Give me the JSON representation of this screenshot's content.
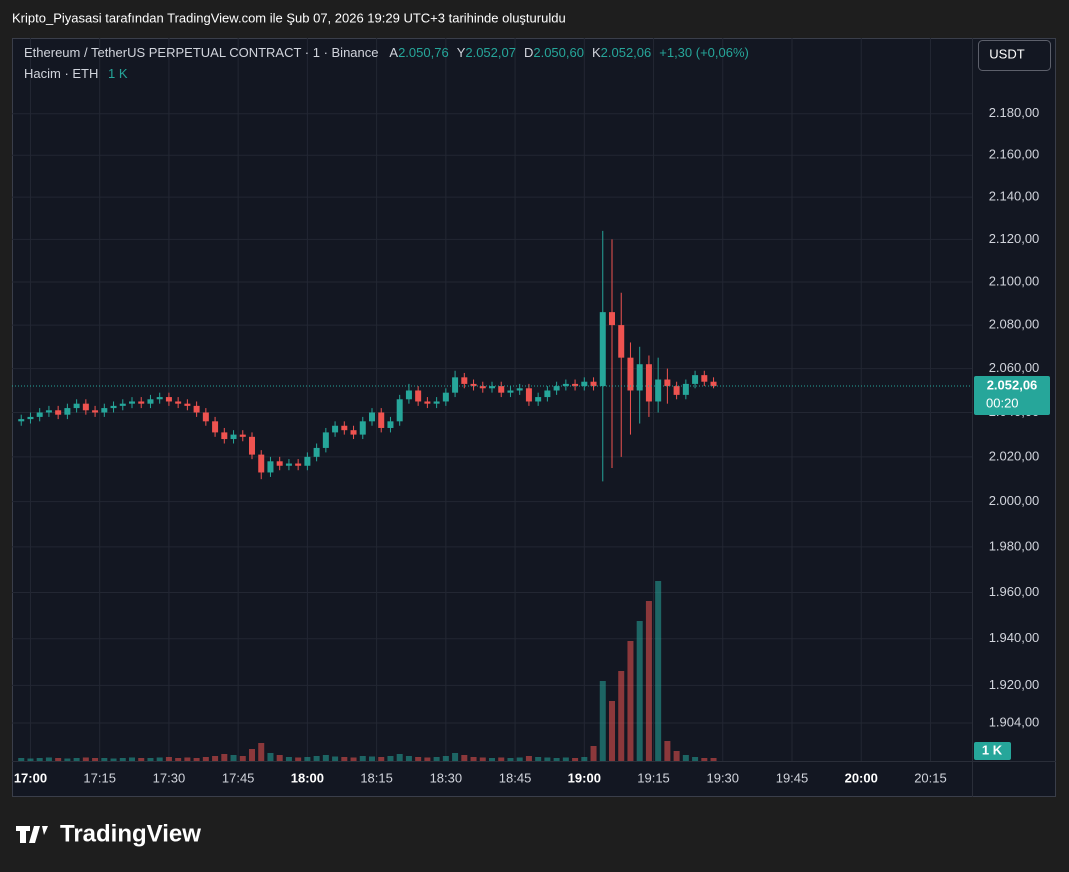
{
  "header": "Kripto_Piyasasi tarafından TradingView.com ile Şub 07, 2026 19:29 UTC+3 tarihinde oluşturuldu",
  "footer_logo": "TradingView",
  "currency_button": "USDT",
  "chart_data": {
    "type": "candlestick",
    "title": "Ethereum / TetherUS PERPETUAL CONTRACT · 1 · Binance",
    "ohlc_legend": [
      {
        "label": "A",
        "value": "2.050,76"
      },
      {
        "label": "Y",
        "value": "2.052,07"
      },
      {
        "label": "D",
        "value": "2.050,60"
      },
      {
        "label": "K",
        "value": "2.052,06"
      }
    ],
    "change": "+1,30 (+0,06%)",
    "volume_title": "Hacim · ETH",
    "volume_legend": "1 K",
    "x": [
      "16:58",
      "17:00",
      "17:02",
      "17:04",
      "17:06",
      "17:08",
      "17:10",
      "17:12",
      "17:14",
      "17:16",
      "17:18",
      "17:20",
      "17:22",
      "17:24",
      "17:26",
      "17:28",
      "17:30",
      "17:32",
      "17:34",
      "17:36",
      "17:38",
      "17:40",
      "17:42",
      "17:44",
      "17:46",
      "17:48",
      "17:50",
      "17:52",
      "17:54",
      "17:56",
      "17:58",
      "18:00",
      "18:02",
      "18:04",
      "18:06",
      "18:08",
      "18:10",
      "18:12",
      "18:14",
      "18:16",
      "18:18",
      "18:20",
      "18:22",
      "18:24",
      "18:26",
      "18:28",
      "18:30",
      "18:32",
      "18:34",
      "18:36",
      "18:38",
      "18:40",
      "18:42",
      "18:44",
      "18:46",
      "18:48",
      "18:50",
      "18:52",
      "18:54",
      "18:56",
      "18:58",
      "19:00",
      "19:02",
      "19:04",
      "19:06",
      "19:08",
      "19:10",
      "19:12",
      "19:14",
      "19:16",
      "19:18",
      "19:20",
      "19:22",
      "19:24",
      "19:26",
      "19:28"
    ],
    "open": [
      2036,
      2037,
      2038,
      2040,
      2041,
      2039,
      2042,
      2044,
      2041,
      2040,
      2042,
      2043,
      2044,
      2045,
      2044,
      2046,
      2047,
      2045,
      2044,
      2043,
      2040,
      2036,
      2031,
      2028,
      2030,
      2029,
      2021,
      2013,
      2018,
      2016,
      2017,
      2016,
      2020,
      2024,
      2031,
      2034,
      2032,
      2030,
      2036,
      2040,
      2033,
      2036,
      2046,
      2050,
      2045,
      2044,
      2045,
      2049,
      2056,
      2053,
      2052,
      2051,
      2052,
      2049,
      2050,
      2051,
      2045,
      2047,
      2050,
      2052,
      2053,
      2052,
      2054,
      2052,
      2086,
      2080,
      2065,
      2050,
      2062,
      2045,
      2055,
      2052,
      2048,
      2053,
      2057,
      2054
    ],
    "high": [
      2039,
      2040,
      2042,
      2043,
      2043,
      2044,
      2046,
      2046,
      2043,
      2044,
      2045,
      2046,
      2047,
      2047,
      2048,
      2049,
      2049,
      2047,
      2046,
      2045,
      2042,
      2038,
      2033,
      2032,
      2032,
      2031,
      2023,
      2020,
      2020,
      2019,
      2019,
      2022,
      2026,
      2033,
      2036,
      2036,
      2034,
      2038,
      2042,
      2042,
      2038,
      2048,
      2053,
      2052,
      2047,
      2047,
      2051,
      2059,
      2058,
      2055,
      2054,
      2054,
      2054,
      2052,
      2053,
      2053,
      2049,
      2052,
      2054,
      2055,
      2055,
      2056,
      2056,
      2124,
      2120,
      2095,
      2072,
      2070,
      2066,
      2065,
      2060,
      2054,
      2055,
      2059,
      2059,
      2056
    ],
    "low": [
      2034,
      2035,
      2036,
      2038,
      2037,
      2037,
      2040,
      2039,
      2038,
      2038,
      2040,
      2041,
      2042,
      2042,
      2042,
      2044,
      2043,
      2042,
      2041,
      2038,
      2034,
      2029,
      2026,
      2026,
      2027,
      2019,
      2010,
      2011,
      2014,
      2014,
      2014,
      2014,
      2018,
      2022,
      2029,
      2030,
      2028,
      2028,
      2034,
      2031,
      2031,
      2034,
      2044,
      2043,
      2042,
      2042,
      2043,
      2047,
      2051,
      2050,
      2049,
      2049,
      2047,
      2047,
      2048,
      2043,
      2043,
      2045,
      2048,
      2050,
      2050,
      2050,
      2050,
      2009,
      2015,
      2020,
      2030,
      2035,
      2038,
      2040,
      2044,
      2046,
      2046,
      2051,
      2052,
      2051
    ],
    "close": [
      2037,
      2038,
      2040,
      2041,
      2039,
      2042,
      2044,
      2041,
      2040,
      2042,
      2043,
      2044,
      2045,
      2044,
      2046,
      2047,
      2045,
      2044,
      2043,
      2040,
      2036,
      2031,
      2028,
      2030,
      2029,
      2021,
      2013,
      2018,
      2016,
      2017,
      2016,
      2020,
      2024,
      2031,
      2034,
      2032,
      2030,
      2036,
      2040,
      2033,
      2036,
      2046,
      2050,
      2045,
      2044,
      2045,
      2049,
      2056,
      2053,
      2052,
      2051,
      2052,
      2049,
      2050,
      2051,
      2045,
      2047,
      2050,
      2052,
      2053,
      2052,
      2054,
      2052,
      2086,
      2080,
      2065,
      2050,
      2062,
      2045,
      2055,
      2052,
      2048,
      2053,
      2057,
      2054,
      2052
    ],
    "volume": [
      300,
      250,
      300,
      350,
      300,
      250,
      300,
      350,
      300,
      300,
      250,
      300,
      350,
      300,
      300,
      350,
      400,
      300,
      350,
      300,
      400,
      500,
      700,
      600,
      500,
      1200,
      1800,
      800,
      600,
      400,
      350,
      400,
      500,
      600,
      450,
      400,
      350,
      500,
      450,
      400,
      500,
      700,
      500,
      400,
      350,
      400,
      500,
      800,
      600,
      400,
      350,
      300,
      350,
      300,
      350,
      500,
      400,
      350,
      300,
      350,
      300,
      400,
      1500,
      8000,
      6000,
      9000,
      12000,
      14000,
      16000,
      18000,
      2000,
      1000,
      600,
      400,
      300,
      300
    ],
    "up_color": "#26a69a",
    "down_color": "#ef5350",
    "ylim": [
      1888,
      2217
    ],
    "log_scale": true,
    "yticks": [
      {
        "value": 1904,
        "label": "1.904,00"
      },
      {
        "value": 1920,
        "label": "1.920,00"
      },
      {
        "value": 1940,
        "label": "1.940,00"
      },
      {
        "value": 1960,
        "label": "1.960,00"
      },
      {
        "value": 1980,
        "label": "1.980,00"
      },
      {
        "value": 2000,
        "label": "2.000,00"
      },
      {
        "value": 2020,
        "label": "2.020,00"
      },
      {
        "value": 2040,
        "label": "2.040,00"
      },
      {
        "value": 2060,
        "label": "2.060,00"
      },
      {
        "value": 2080,
        "label": "2.080,00"
      },
      {
        "value": 2100,
        "label": "2.100,00"
      },
      {
        "value": 2120,
        "label": "2.120,00"
      },
      {
        "value": 2140,
        "label": "2.140,00"
      },
      {
        "value": 2160,
        "label": "2.160,00"
      },
      {
        "value": 2180,
        "label": "2.180,00"
      }
    ],
    "xlim": [
      "16:56",
      "20:24"
    ],
    "xticks": [
      "17:00",
      "17:15",
      "17:30",
      "17:45",
      "18:00",
      "18:15",
      "18:30",
      "18:45",
      "19:00",
      "19:15",
      "19:30",
      "19:45",
      "20:00",
      "20:15"
    ],
    "vlim": [
      0,
      20000
    ],
    "last_price": {
      "value": 2052.06,
      "label": "2.052,06"
    },
    "countdown": "00:20",
    "volume_tag": {
      "value": 1000,
      "label": "1 K"
    },
    "grid": true
  }
}
